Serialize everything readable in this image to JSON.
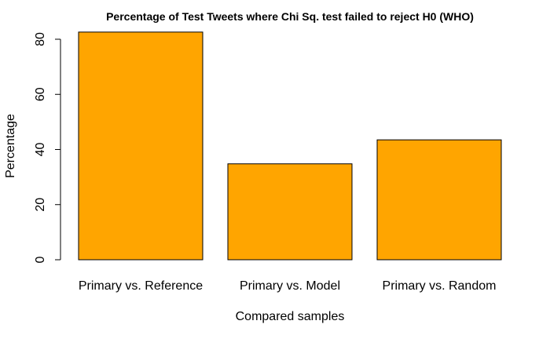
{
  "chart_data": {
    "type": "bar",
    "title": "Percentage of Test Tweets where Chi Sq. test failed to reject H0 (WHO)",
    "xlabel": "Compared samples",
    "ylabel": "Percentage",
    "categories": [
      "Primary vs. Reference",
      "Primary vs. Model",
      "Primary vs. Random"
    ],
    "values": [
      82.6,
      34.8,
      43.5
    ],
    "ylim": [
      0,
      80
    ],
    "yticks": [
      "0",
      "20",
      "40",
      "60",
      "80"
    ],
    "bar_color": "#FFA500",
    "bar_edge_color": "#000000",
    "grid": false,
    "legend": "none"
  }
}
